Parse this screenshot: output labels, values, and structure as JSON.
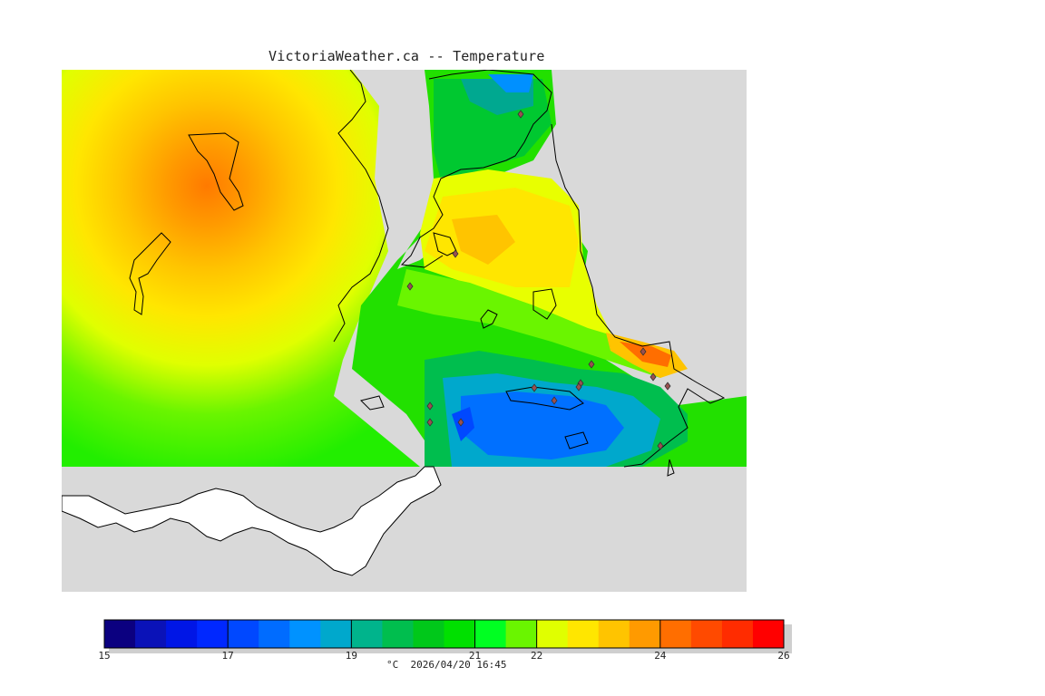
{
  "title": "VictoriaWeather.ca -- Temperature",
  "map": {
    "background_color": "#d9d9d9",
    "land_color": "#ffffff",
    "coast_color": "#000000",
    "station_marker": "diamond-icon"
  },
  "legend": {
    "min": 15,
    "max": 26,
    "colors": [
      "#0b0080",
      "#0a12b8",
      "#0016e6",
      "#0028ff",
      "#0048ff",
      "#006cff",
      "#0092ff",
      "#00a8cc",
      "#00b48c",
      "#00be4e",
      "#00c81a",
      "#00e000",
      "#00ff22",
      "#6af500",
      "#e0ff00",
      "#ffe600",
      "#ffc400",
      "#ff9a00",
      "#ff6e00",
      "#ff4a00",
      "#ff2c00",
      "#ff0000"
    ],
    "tick_labels": [
      "15",
      "17",
      "19",
      "21",
      "22",
      "24",
      "26"
    ],
    "tick_values": [
      15,
      17,
      19,
      21,
      22,
      24,
      26
    ],
    "unit": "°C",
    "timestamp": "2026/04/20 16:45"
  }
}
